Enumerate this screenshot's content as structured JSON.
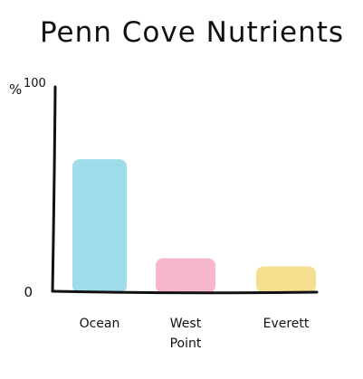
{
  "chart_data": {
    "type": "bar",
    "title": "Penn Cove   Nutrients",
    "ylabel": "%",
    "xlabel": "",
    "ylim": [
      0,
      100
    ],
    "y_ticks": [
      "0",
      "100"
    ],
    "categories": [
      "Ocean",
      "West Point",
      "Everett"
    ],
    "values": [
      64,
      16,
      12
    ],
    "colors": [
      "#9edcea",
      "#f9b6cf",
      "#f5df8f"
    ],
    "grid": false
  }
}
